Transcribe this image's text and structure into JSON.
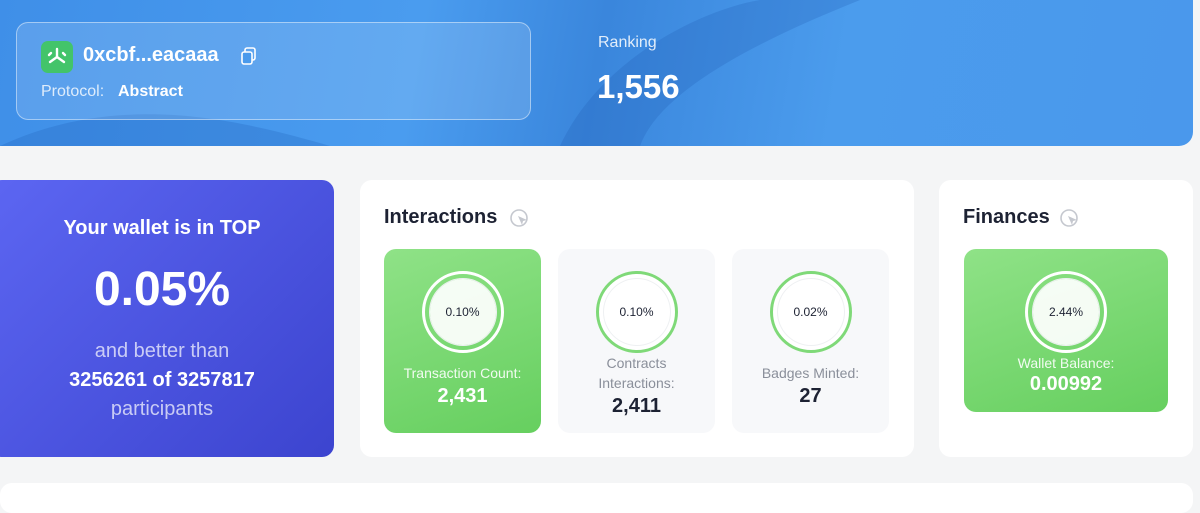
{
  "header": {
    "address": "0xcbf...eacaaa",
    "protocol_label": "Protocol:",
    "protocol": "Abstract",
    "ranking_label": "Ranking",
    "ranking": "1,556"
  },
  "rank_card": {
    "line1": "Your wallet is in TOP",
    "percent": "0.05%",
    "line2": "and better than",
    "line3": "3256261 of 3257817",
    "line4": "participants"
  },
  "interactions": {
    "title": "Interactions",
    "tiles": [
      {
        "percent": "0.10%",
        "label": "Transaction Count:",
        "value": "2,431"
      },
      {
        "percent": "0.10%",
        "label": "Contracts Interactions:",
        "value": "2,411"
      },
      {
        "percent": "0.02%",
        "label": "Badges Minted:",
        "value": "27"
      }
    ]
  },
  "finances": {
    "title": "Finances",
    "tiles": [
      {
        "percent": "2.44%",
        "label": "Wallet Balance:",
        "value": "0.00992"
      }
    ]
  }
}
